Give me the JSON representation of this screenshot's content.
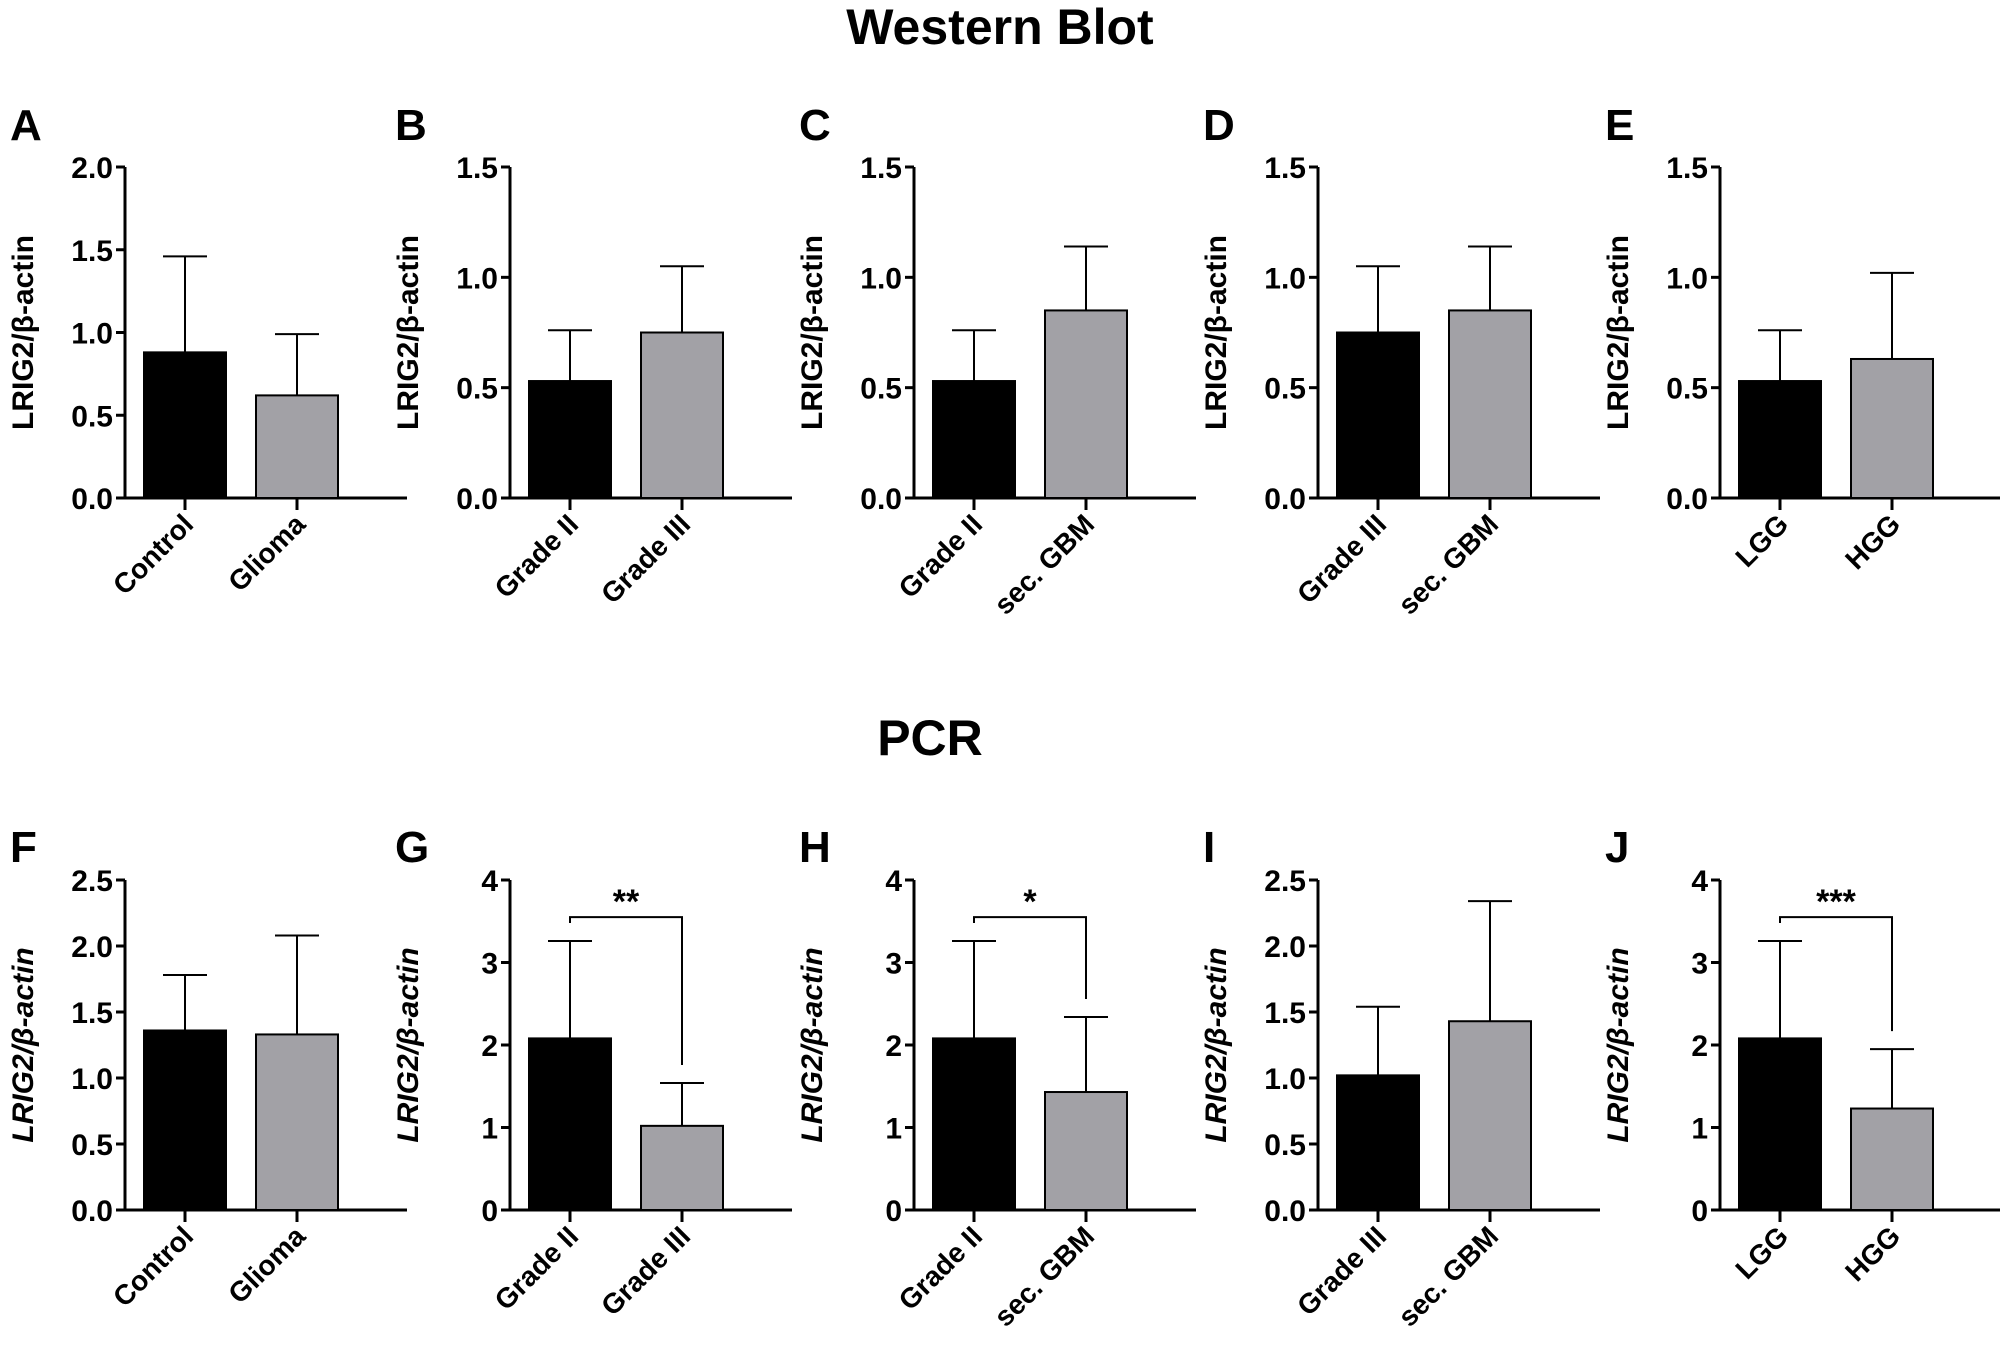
{
  "sections": {
    "top": "Western Blot",
    "bottom": "PCR"
  },
  "colors": {
    "bar1": "#000000",
    "bar2": "#a2a1a6",
    "axis": "#000000"
  },
  "chart_data": [
    {
      "panel": "A",
      "type": "bar",
      "row": 0,
      "ylabel": "LRIG2/β-actin",
      "ylabel_italic": false,
      "ylim": [
        0,
        2.0
      ],
      "yticks": [
        "0.0",
        "0.5",
        "1.0",
        "1.5",
        "2.0"
      ],
      "categories": [
        "Control",
        "Glioma"
      ],
      "values": [
        0.88,
        0.62
      ],
      "error_upper": [
        1.46,
        0.99
      ],
      "significance": ""
    },
    {
      "panel": "B",
      "type": "bar",
      "row": 0,
      "ylabel": "LRIG2/β-actin",
      "ylabel_italic": false,
      "ylim": [
        0,
        1.5
      ],
      "yticks": [
        "0.0",
        "0.5",
        "1.0",
        "1.5"
      ],
      "categories": [
        "Grade II",
        "Grade III"
      ],
      "values": [
        0.53,
        0.75
      ],
      "error_upper": [
        0.76,
        1.05
      ],
      "significance": ""
    },
    {
      "panel": "C",
      "type": "bar",
      "row": 0,
      "ylabel": "LRIG2/β-actin",
      "ylabel_italic": false,
      "ylim": [
        0,
        1.5
      ],
      "yticks": [
        "0.0",
        "0.5",
        "1.0",
        "1.5"
      ],
      "categories": [
        "Grade II",
        "sec. GBM"
      ],
      "values": [
        0.53,
        0.85
      ],
      "error_upper": [
        0.76,
        1.14
      ],
      "significance": ""
    },
    {
      "panel": "D",
      "type": "bar",
      "row": 0,
      "ylabel": "LRIG2/β-actin",
      "ylabel_italic": false,
      "ylim": [
        0,
        1.5
      ],
      "yticks": [
        "0.0",
        "0.5",
        "1.0",
        "1.5"
      ],
      "categories": [
        "Grade III",
        "sec. GBM"
      ],
      "values": [
        0.75,
        0.85
      ],
      "error_upper": [
        1.05,
        1.14
      ],
      "significance": ""
    },
    {
      "panel": "E",
      "type": "bar",
      "row": 0,
      "ylabel": "LRIG2/β-actin",
      "ylabel_italic": false,
      "ylim": [
        0,
        1.5
      ],
      "yticks": [
        "0.0",
        "0.5",
        "1.0",
        "1.5"
      ],
      "categories": [
        "LGG",
        "HGG"
      ],
      "values": [
        0.53,
        0.63
      ],
      "error_upper": [
        0.76,
        1.02
      ],
      "significance": ""
    },
    {
      "panel": "F",
      "type": "bar",
      "row": 1,
      "ylabel": "LRIG2/β-actin",
      "ylabel_italic": true,
      "ylim": [
        0,
        2.5
      ],
      "yticks": [
        "0.0",
        "0.5",
        "1.0",
        "1.5",
        "2.0",
        "2.5"
      ],
      "categories": [
        "Control",
        "Glioma"
      ],
      "values": [
        1.36,
        1.33
      ],
      "error_upper": [
        1.78,
        2.08
      ],
      "significance": ""
    },
    {
      "panel": "G",
      "type": "bar",
      "row": 1,
      "ylabel": "LRIG2/β-actin",
      "ylabel_italic": true,
      "ylim": [
        0,
        4
      ],
      "yticks": [
        "0",
        "1",
        "2",
        "3",
        "4"
      ],
      "categories": [
        "Grade II",
        "Grade III"
      ],
      "values": [
        2.08,
        1.02
      ],
      "error_upper": [
        3.26,
        1.54
      ],
      "significance": "**"
    },
    {
      "panel": "H",
      "type": "bar",
      "row": 1,
      "ylabel": "LRIG2/β-actin",
      "ylabel_italic": true,
      "ylim": [
        0,
        4
      ],
      "yticks": [
        "0",
        "1",
        "2",
        "3",
        "4"
      ],
      "categories": [
        "Grade II",
        "sec. GBM"
      ],
      "values": [
        2.08,
        1.43
      ],
      "error_upper": [
        3.26,
        2.34
      ],
      "significance": "*"
    },
    {
      "panel": "I",
      "type": "bar",
      "row": 1,
      "ylabel": "LRIG2/β-actin",
      "ylabel_italic": true,
      "ylim": [
        0,
        2.5
      ],
      "yticks": [
        "0.0",
        "0.5",
        "1.0",
        "1.5",
        "2.0",
        "2.5"
      ],
      "categories": [
        "Grade III",
        "sec. GBM"
      ],
      "values": [
        1.02,
        1.43
      ],
      "error_upper": [
        1.54,
        2.34
      ],
      "significance": ""
    },
    {
      "panel": "J",
      "type": "bar",
      "row": 1,
      "ylabel": "LRIG2/β-actin",
      "ylabel_italic": true,
      "ylim": [
        0,
        4
      ],
      "yticks": [
        "0",
        "1",
        "2",
        "3",
        "4"
      ],
      "categories": [
        "LGG",
        "HGG"
      ],
      "values": [
        2.08,
        1.23
      ],
      "error_upper": [
        3.26,
        1.95
      ],
      "significance": "***"
    }
  ]
}
